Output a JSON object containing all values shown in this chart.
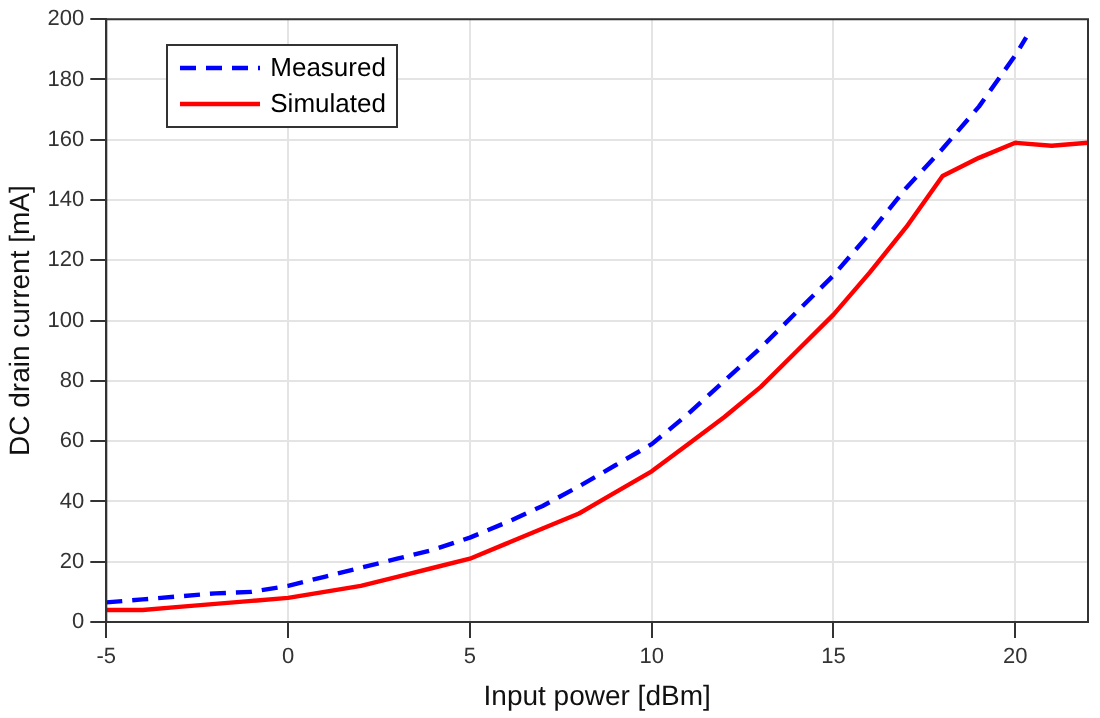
{
  "chart_data": {
    "type": "line",
    "xlabel": "Input power [dBm]",
    "ylabel": "DC drain current [mA]",
    "xlim": [
      -5,
      22
    ],
    "xticks": [
      -5,
      0,
      5,
      10,
      15,
      20
    ],
    "ylim": [
      0,
      200
    ],
    "yticks": [
      0,
      20,
      40,
      60,
      80,
      100,
      120,
      140,
      160,
      180,
      200
    ],
    "grid": true,
    "legend": "top left",
    "marker": "none",
    "series": [
      {
        "name": "Measured",
        "color": "#0000ff",
        "line_style": "dashed",
        "x": [
          -5,
          -4,
          -3,
          -2,
          -1,
          0,
          1,
          2,
          3,
          4,
          5,
          6,
          7,
          8,
          9,
          10,
          11,
          12,
          13,
          14,
          15,
          16,
          17,
          18,
          19,
          20,
          20.3
        ],
        "values": [
          6.5,
          7.5,
          8.5,
          9.5,
          10,
          12,
          15,
          18,
          21,
          24,
          28,
          33,
          38.5,
          45,
          52,
          59,
          69,
          80,
          91,
          103,
          115,
          129,
          144,
          157,
          171,
          188,
          194
        ]
      },
      {
        "name": "Simulated",
        "color": "#ff0000",
        "line_style": "solid",
        "x": [
          -5,
          -4,
          -3,
          -2,
          -1,
          0,
          1,
          2,
          3,
          4,
          5,
          6,
          7,
          8,
          9,
          10,
          11,
          12,
          13,
          14,
          15,
          16,
          17,
          18,
          19,
          20,
          21,
          22
        ],
        "values": [
          4,
          4,
          5,
          6,
          7,
          8,
          10,
          12,
          15,
          18,
          21,
          26,
          31,
          36,
          43,
          50,
          59,
          68,
          78,
          90,
          102,
          116,
          131,
          148,
          154,
          159,
          158,
          159
        ]
      }
    ]
  }
}
